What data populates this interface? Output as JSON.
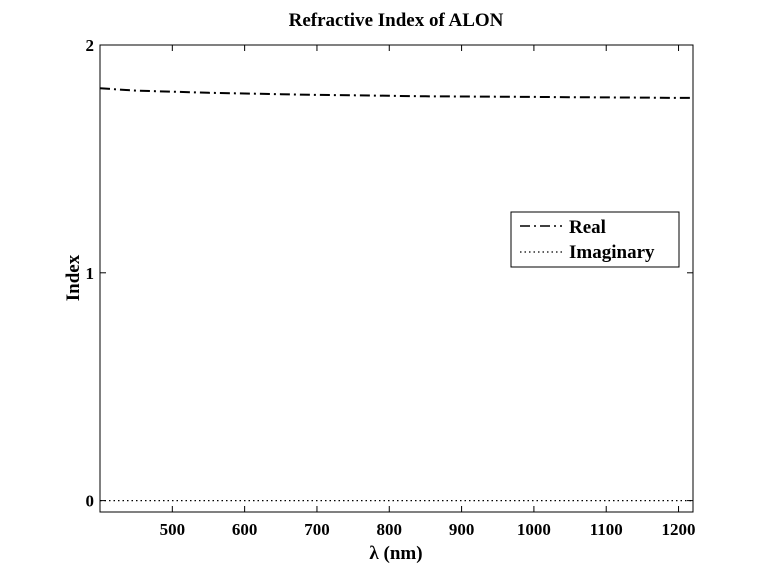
{
  "chart_data": {
    "type": "line",
    "title": "Refractive Index of ALON",
    "xlabel": "λ (nm)",
    "ylabel": "Index",
    "xlim": [
      400,
      1220
    ],
    "ylim": [
      -0.05,
      2
    ],
    "x_ticks": [
      500,
      600,
      700,
      800,
      900,
      1000,
      1100,
      1200
    ],
    "x_tick_labels": [
      "500",
      "600",
      "700",
      "800",
      "900",
      "1000",
      "1100",
      "1200"
    ],
    "y_ticks": [
      0,
      1,
      2
    ],
    "y_tick_labels": [
      "0",
      "1",
      "2"
    ],
    "grid": false,
    "legend_position": "right",
    "series": [
      {
        "name": "Real",
        "line_style": "dash-dot",
        "color": "#000000",
        "x": [
          400,
          450,
          500,
          550,
          600,
          650,
          700,
          750,
          800,
          850,
          900,
          950,
          1000,
          1050,
          1100,
          1150,
          1200,
          1220
        ],
        "y": [
          1.81,
          1.8,
          1.795,
          1.79,
          1.787,
          1.784,
          1.781,
          1.779,
          1.777,
          1.775,
          1.774,
          1.773,
          1.772,
          1.771,
          1.77,
          1.769,
          1.768,
          1.768
        ]
      },
      {
        "name": "Imaginary",
        "line_style": "dotted",
        "color": "#000000",
        "x": [
          400,
          500,
          600,
          700,
          800,
          900,
          1000,
          1100,
          1200,
          1220
        ],
        "y": [
          0,
          0,
          0,
          0,
          0,
          0,
          0,
          0,
          0,
          0
        ]
      }
    ]
  }
}
